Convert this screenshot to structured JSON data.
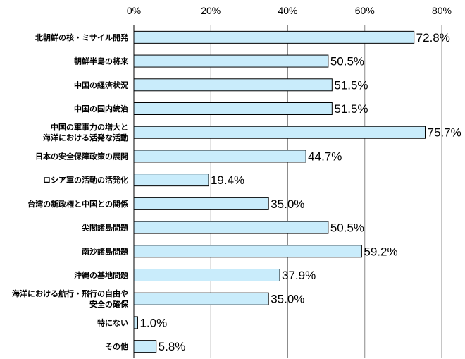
{
  "chart_data": {
    "type": "bar",
    "orientation": "horizontal",
    "title": "",
    "xlabel": "",
    "ylabel": "",
    "xlim": [
      0,
      80
    ],
    "ticks": [
      0,
      20,
      40,
      60,
      80
    ],
    "tick_suffix": "%",
    "grid": true,
    "legend": "none",
    "bar_color": "#c9ecfb",
    "categories": [
      [
        "北朝鮮の核・ミサイル開発"
      ],
      [
        "朝鮮半島の将来"
      ],
      [
        "中国の経済状況"
      ],
      [
        "中国の国内統治"
      ],
      [
        "中国の軍事力の増大と",
        "海洋における活発な活動"
      ],
      [
        "日本の安全保障政策の展開"
      ],
      [
        "ロシア軍の活動の活発化"
      ],
      [
        "台湾の新政権と中国との関係"
      ],
      [
        "尖閣諸島問題"
      ],
      [
        "南沙諸島問題"
      ],
      [
        "沖縄の基地問題"
      ],
      [
        "海洋における航行・飛行の自由や",
        "安全の確保"
      ],
      [
        "特にない"
      ],
      [
        "その他"
      ]
    ],
    "values": [
      72.8,
      50.5,
      51.5,
      51.5,
      75.7,
      44.7,
      19.4,
      35.0,
      50.5,
      59.2,
      37.9,
      35.0,
      1.0,
      5.8
    ],
    "value_labels": [
      "72.8%",
      "50.5%",
      "51.5%",
      "51.5%",
      "75.7%",
      "44.7%",
      "19.4%",
      "35.0%",
      "50.5%",
      "59.2%",
      "37.9%",
      "35.0%",
      "1.0%",
      "5.8%"
    ]
  }
}
